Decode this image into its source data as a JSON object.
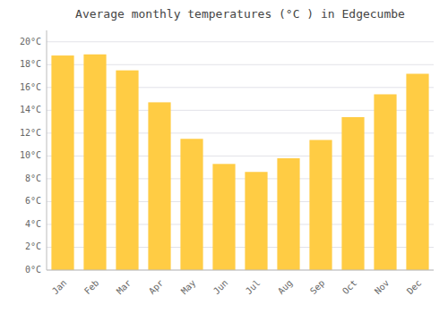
{
  "chart_data": {
    "type": "bar",
    "title": "Average monthly temperatures (°C ) in Edgecumbe",
    "categories": [
      "Jan",
      "Feb",
      "Mar",
      "Apr",
      "May",
      "Jun",
      "Jul",
      "Aug",
      "Sep",
      "Oct",
      "Nov",
      "Dec"
    ],
    "values": [
      18.8,
      18.9,
      17.5,
      14.7,
      11.5,
      9.3,
      8.6,
      9.8,
      11.4,
      13.4,
      15.4,
      17.2
    ],
    "color": "#FFCC44",
    "ylim": [
      0,
      21
    ],
    "yticks": [
      {
        "value": 0,
        "label": "0°C"
      },
      {
        "value": 2,
        "label": "2°C"
      },
      {
        "value": 4,
        "label": "4°C"
      },
      {
        "value": 6,
        "label": "6°C"
      },
      {
        "value": 8,
        "label": "8°C"
      },
      {
        "value": 10,
        "label": "10°C"
      },
      {
        "value": 12,
        "label": "12°C"
      },
      {
        "value": 14,
        "label": "14°C"
      },
      {
        "value": 16,
        "label": "16°C"
      },
      {
        "value": 18,
        "label": "18°C"
      },
      {
        "value": 20,
        "label": "20°C"
      }
    ],
    "grid": true
  }
}
